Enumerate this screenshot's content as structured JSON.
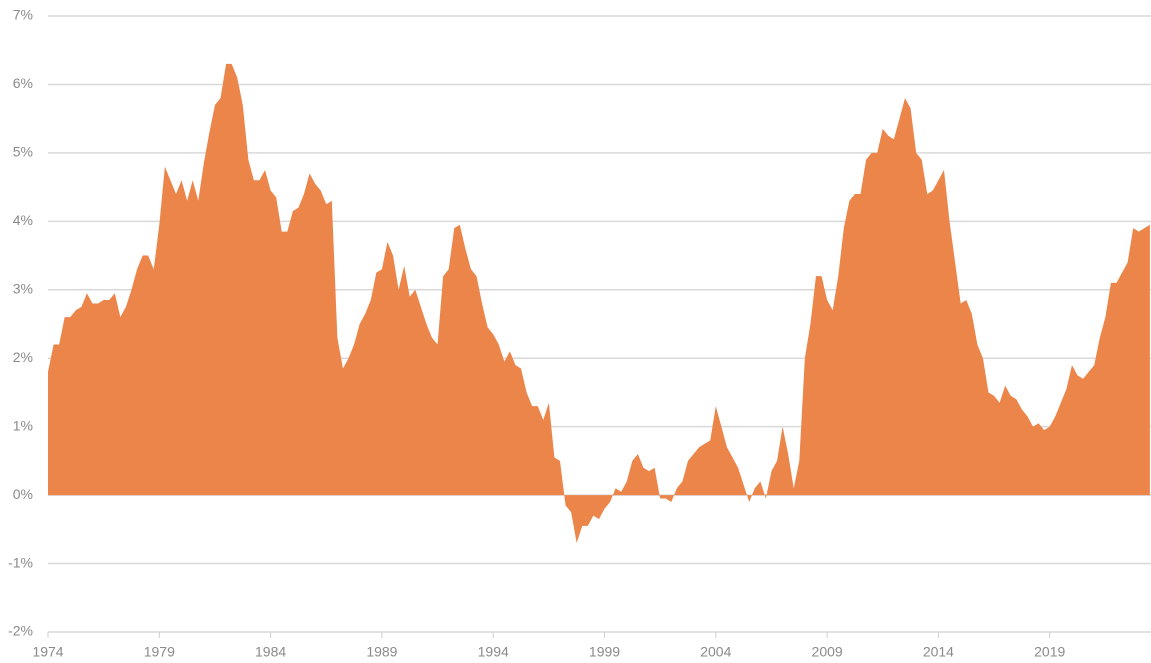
{
  "chart_data": {
    "type": "area",
    "color": "#ec854a",
    "grid": true,
    "xlim": [
      1974,
      2023.55
    ],
    "xticks": [
      1974,
      1979,
      1984,
      1989,
      1994,
      1999,
      2004,
      2009,
      2014,
      2019
    ],
    "ylim": [
      -2,
      7
    ],
    "yticks": [
      {
        "value": -2,
        "label": "-2%"
      },
      {
        "value": -1,
        "label": "-1%"
      },
      {
        "value": 0,
        "label": "0%"
      },
      {
        "value": 1,
        "label": "1%"
      },
      {
        "value": 2,
        "label": "2%"
      },
      {
        "value": 3,
        "label": "3%"
      },
      {
        "value": 4,
        "label": "4%"
      },
      {
        "value": 5,
        "label": "5%"
      },
      {
        "value": 6,
        "label": "6%"
      },
      {
        "value": 7,
        "label": "7%"
      }
    ],
    "x": [
      1974,
      1974.25,
      1974.5,
      1974.75,
      1975,
      1975.25,
      1975.5,
      1975.75,
      1976,
      1976.25,
      1976.5,
      1976.75,
      1977,
      1977.25,
      1977.5,
      1977.75,
      1978,
      1978.25,
      1978.5,
      1978.75,
      1979,
      1979.25,
      1979.5,
      1979.75,
      1980,
      1980.25,
      1980.5,
      1980.75,
      1981,
      1981.25,
      1981.5,
      1981.75,
      1982,
      1982.25,
      1982.5,
      1982.75,
      1983,
      1983.25,
      1983.5,
      1983.75,
      1984,
      1984.25,
      1984.5,
      1984.75,
      1985,
      1985.25,
      1985.5,
      1985.75,
      1986,
      1986.25,
      1986.5,
      1986.75,
      1987,
      1987.25,
      1987.5,
      1987.75,
      1988,
      1988.25,
      1988.5,
      1988.75,
      1989,
      1989.25,
      1989.5,
      1989.75,
      1990,
      1990.25,
      1990.5,
      1990.75,
      1991,
      1991.25,
      1991.5,
      1991.75,
      1992,
      1992.25,
      1992.5,
      1992.75,
      1993,
      1993.25,
      1993.5,
      1993.75,
      1994,
      1994.25,
      1994.5,
      1994.75,
      1995,
      1995.25,
      1995.5,
      1995.75,
      1996,
      1996.25,
      1996.5,
      1996.75,
      1997,
      1997.25,
      1997.5,
      1997.75,
      1998,
      1998.25,
      1998.5,
      1998.75,
      1999,
      1999.25,
      1999.5,
      1999.75,
      2000,
      2000.25,
      2000.5,
      2000.75,
      2001,
      2001.25,
      2001.5,
      2001.75,
      2002,
      2002.25,
      2002.5,
      2002.75,
      2003,
      2003.25,
      2003.5,
      2003.75,
      2004,
      2004.25,
      2004.5,
      2004.75,
      2005,
      2005.25,
      2005.5,
      2005.75,
      2006,
      2006.25,
      2006.5,
      2006.75,
      2007,
      2007.25,
      2007.5,
      2007.75,
      2008,
      2008.25,
      2008.5,
      2008.75,
      2009,
      2009.25,
      2009.5,
      2009.75,
      2010,
      2010.25,
      2010.5,
      2010.75,
      2011,
      2011.25,
      2011.5,
      2011.75,
      2012,
      2012.25,
      2012.5,
      2012.75,
      2013,
      2013.25,
      2013.5,
      2013.75,
      2014,
      2014.25,
      2014.5,
      2014.75,
      2015,
      2015.25,
      2015.5,
      2015.75,
      2016,
      2016.25,
      2016.5,
      2016.75,
      2017,
      2017.25,
      2017.5,
      2017.75,
      2018,
      2018.25,
      2018.5,
      2018.75,
      2019,
      2019.25,
      2019.5,
      2019.75,
      2020,
      2020.25,
      2020.5,
      2020.75,
      2021,
      2021.25,
      2021.5,
      2021.75,
      2022,
      2022.25,
      2022.5,
      2022.75,
      2023,
      2023.5
    ],
    "values": [
      1.8,
      2.2,
      2.2,
      2.6,
      2.6,
      2.7,
      2.75,
      2.95,
      2.8,
      2.8,
      2.85,
      2.85,
      2.95,
      2.6,
      2.75,
      3.0,
      3.3,
      3.5,
      3.5,
      3.3,
      3.95,
      4.8,
      4.6,
      4.4,
      4.6,
      4.3,
      4.6,
      4.3,
      4.85,
      5.3,
      5.7,
      5.8,
      6.3,
      6.3,
      6.1,
      5.7,
      4.9,
      4.6,
      4.6,
      4.75,
      4.45,
      4.35,
      3.85,
      3.85,
      4.15,
      4.2,
      4.4,
      4.7,
      4.55,
      4.45,
      4.25,
      4.3,
      2.3,
      1.85,
      2.0,
      2.2,
      2.5,
      2.65,
      2.85,
      3.25,
      3.3,
      3.7,
      3.5,
      3.0,
      3.35,
      2.9,
      3.0,
      2.75,
      2.5,
      2.3,
      2.2,
      3.2,
      3.3,
      3.9,
      3.95,
      3.6,
      3.3,
      3.2,
      2.8,
      2.45,
      2.35,
      2.2,
      1.95,
      2.1,
      1.9,
      1.85,
      1.5,
      1.3,
      1.3,
      1.1,
      1.35,
      0.55,
      0.5,
      -0.15,
      -0.25,
      -0.7,
      -0.45,
      -0.45,
      -0.3,
      -0.35,
      -0.2,
      -0.1,
      0.1,
      0.05,
      0.2,
      0.5,
      0.6,
      0.4,
      0.35,
      0.4,
      -0.05,
      -0.05,
      -0.1,
      0.1,
      0.2,
      0.5,
      0.6,
      0.7,
      0.75,
      0.8,
      1.3,
      1.0,
      0.7,
      0.55,
      0.4,
      0.15,
      -0.1,
      0.1,
      0.2,
      -0.05,
      0.35,
      0.5,
      1.0,
      0.6,
      0.1,
      0.5,
      2.0,
      2.5,
      3.2,
      3.2,
      2.85,
      2.7,
      3.2,
      3.9,
      4.3,
      4.4,
      4.4,
      4.9,
      5.0,
      5.0,
      5.35,
      5.25,
      5.2,
      5.5,
      5.8,
      5.65,
      5.0,
      4.9,
      4.4,
      4.45,
      4.6,
      4.75,
      4.0,
      3.4,
      2.8,
      2.85,
      2.65,
      2.2,
      2.0,
      1.5,
      1.45,
      1.35,
      1.6,
      1.45,
      1.4,
      1.25,
      1.15,
      1.0,
      1.05,
      0.95,
      1.0,
      1.15,
      1.35,
      1.55,
      1.9,
      1.75,
      1.7,
      1.8,
      1.9,
      2.3,
      2.6,
      3.1,
      3.1,
      3.25,
      3.4,
      3.9,
      3.85,
      3.95
    ]
  }
}
